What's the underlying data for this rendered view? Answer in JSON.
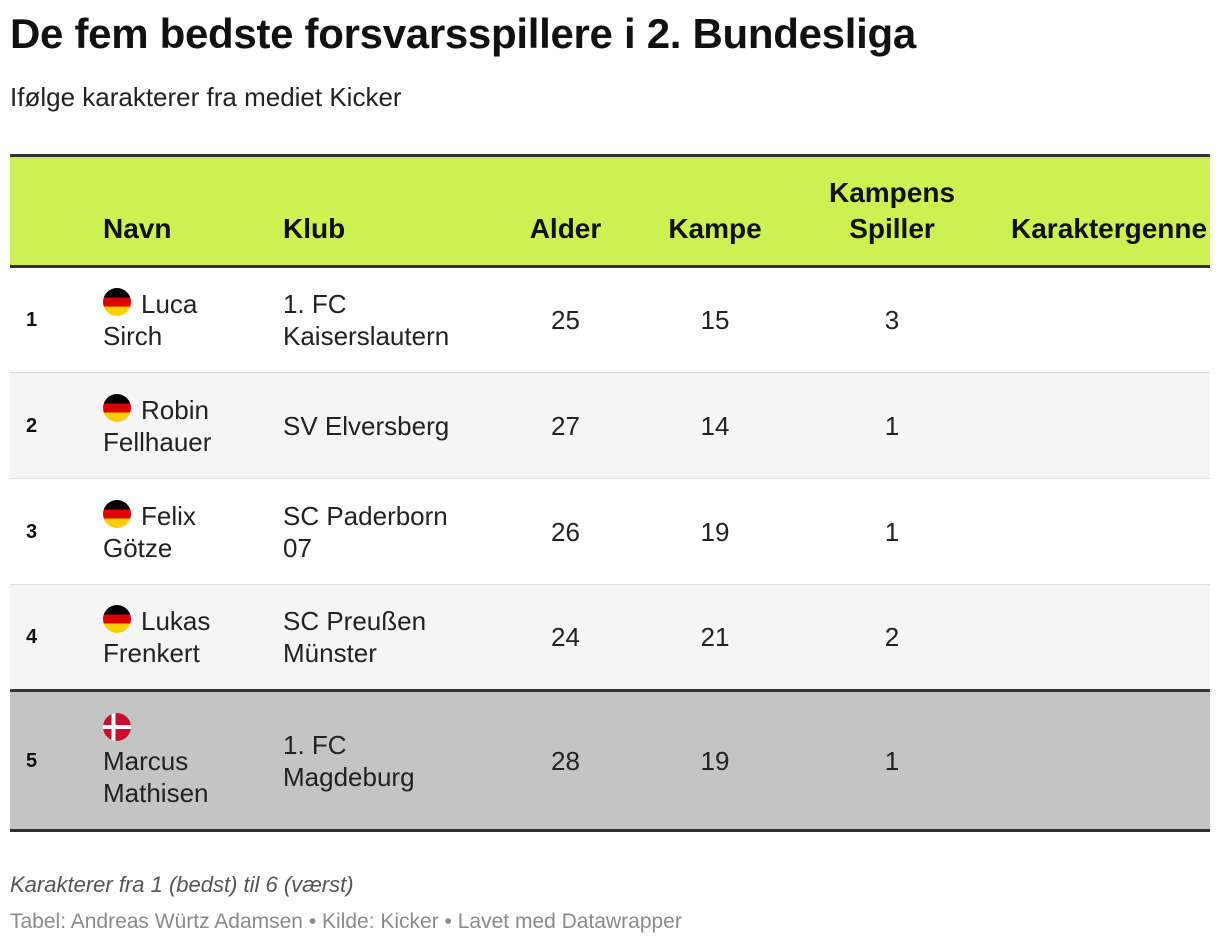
{
  "chart_data": {
    "type": "table",
    "title": "De fem bedste forsvarsspillere i 2. Bundesliga",
    "subtitle": "Ifølge karakterer fra mediet Kicker",
    "columns": {
      "rank": "",
      "name": "Navn",
      "club": "Klub",
      "age": "Alder",
      "matches": "Kampe",
      "motm": "Kampens Spiller",
      "rating": "Karaktergenne"
    },
    "rows": [
      {
        "rank": "1",
        "flag": "germany-flag-icon",
        "first": "Luca",
        "last": "Sirch",
        "club": "1. FC Kaiserslautern",
        "age": "25",
        "matches": "15",
        "motm": "3"
      },
      {
        "rank": "2",
        "flag": "germany-flag-icon",
        "first": "Robin",
        "last": "Fellhauer",
        "club": "SV Elversberg",
        "age": "27",
        "matches": "14",
        "motm": "1"
      },
      {
        "rank": "3",
        "flag": "germany-flag-icon",
        "first": "Felix",
        "last": "Götze",
        "club": "SC Paderborn 07",
        "age": "26",
        "matches": "19",
        "motm": "1"
      },
      {
        "rank": "4",
        "flag": "germany-flag-icon",
        "first": "Lukas",
        "last": "Frenkert",
        "club": "SC Preußen Münster",
        "age": "24",
        "matches": "21",
        "motm": "2"
      },
      {
        "rank": "5",
        "flag": "denmark-flag-icon",
        "first": "Marcus",
        "last": "Mathisen",
        "club": "1. FC Magdeburg",
        "age": "28",
        "matches": "19",
        "motm": "1"
      }
    ],
    "header_color": "#cdf052",
    "highlight_color": "#c4c4c4",
    "footnote": "Karakterer fra 1 (bedst) til 6 (værst)",
    "credits": "Tabel: Andreas Würtz Adamsen • Kilde: Kicker • Lavet med Datawrapper"
  }
}
